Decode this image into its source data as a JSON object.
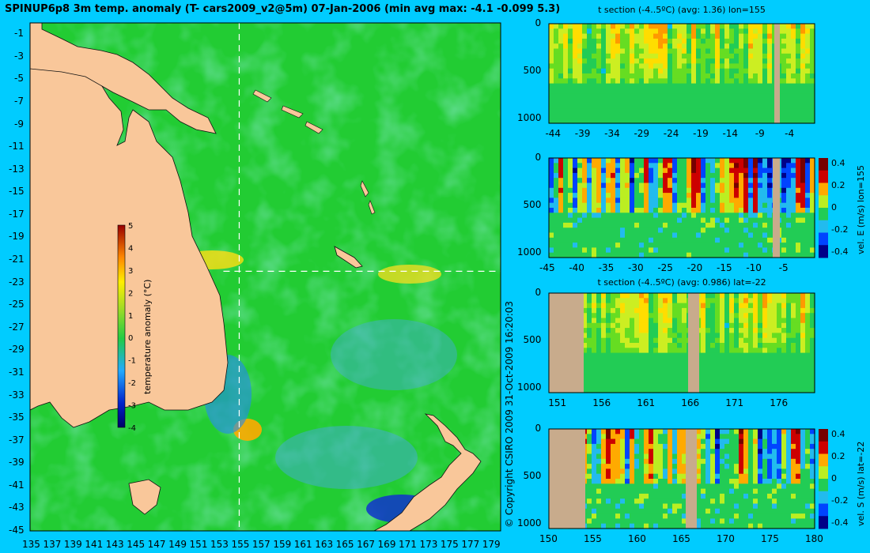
{
  "header": {
    "title": "SPINUP6p8 3m temp. anomaly (T- cars2009_v2@5m) 07-Jan-2006 (min avg max: -4.1 -0.099 5.3)"
  },
  "copyright": "© Copyright CSIRO 2009   31-Oct-2009 16:20:03",
  "colors": {
    "background": "#00ccff",
    "land_map": "#f9c79a",
    "land_section": "#c8ab8c",
    "ocean_base": "#22cc33"
  },
  "chart_data": [
    {
      "type": "heatmap",
      "name": "map",
      "title": "SPINUP6p8 3m temp. anomaly (T- cars2009_v2@5m) 07-Jan-2006 (min avg max: -4.1 -0.099 5.3)",
      "x_ticks": [
        "135",
        "137",
        "139",
        "141",
        "143",
        "145",
        "147",
        "149",
        "151",
        "153",
        "155",
        "157",
        "159",
        "161",
        "163",
        "165",
        "167",
        "169",
        "171",
        "173",
        "175",
        "177",
        "179"
      ],
      "y_ticks": [
        "-1",
        "-3",
        "-5",
        "-7",
        "-9",
        "-11",
        "-13",
        "-15",
        "-17",
        "-19",
        "-21",
        "-23",
        "-25",
        "-27",
        "-29",
        "-31",
        "-33",
        "-35",
        "-37",
        "-39",
        "-41",
        "-43",
        "-45"
      ],
      "xlim": [
        135,
        180
      ],
      "ylim": [
        -45,
        0
      ],
      "crosshair": {
        "lon": 155,
        "lat": -22
      },
      "colorbar": {
        "label": "temperature anomaly (°C)",
        "ticks": [
          "5",
          "4",
          "3",
          "2",
          "1",
          "0",
          "-1",
          "-2",
          "-3",
          "-4"
        ],
        "range": [
          -4,
          5
        ]
      },
      "stats": {
        "min": -4.1,
        "avg": -0.099,
        "max": 5.3
      }
    },
    {
      "type": "heatmap",
      "name": "t-section-lon",
      "title": "t section (-4..5ºC) (avg: 1.36) lon=155",
      "x_ticks": [
        "-44",
        "-39",
        "-34",
        "-29",
        "-24",
        "-19",
        "-14",
        "-9",
        "-4"
      ],
      "y_ticks": [
        "0",
        "500",
        "1000"
      ],
      "xlim": [
        -45,
        0
      ],
      "ylim": [
        1050,
        0
      ]
    },
    {
      "type": "heatmap",
      "name": "vel-e-section",
      "x_ticks": [
        "-45",
        "-40",
        "-35",
        "-30",
        "-25",
        "-20",
        "-15",
        "-10",
        "-5"
      ],
      "y_ticks": [
        "0",
        "500",
        "1000"
      ],
      "xlim": [
        -45,
        0
      ],
      "ylim": [
        1050,
        0
      ],
      "colorbar": {
        "label": "vel. E (m/s) lon=155",
        "ticks": [
          "0.4",
          "0.2",
          "0",
          "-0.2",
          "-0.4"
        ],
        "range": [
          -0.45,
          0.45
        ]
      }
    },
    {
      "type": "heatmap",
      "name": "t-section-lat",
      "title": "t section (-4..5ºC) (avg: 0.986) lat=-22",
      "x_ticks": [
        "151",
        "156",
        "161",
        "166",
        "171",
        "176"
      ],
      "y_ticks": [
        "0",
        "500",
        "1000"
      ],
      "xlim": [
        150,
        180
      ],
      "ylim": [
        1050,
        0
      ]
    },
    {
      "type": "heatmap",
      "name": "vel-s-section",
      "x_ticks": [
        "150",
        "155",
        "160",
        "165",
        "170",
        "175",
        "180"
      ],
      "y_ticks": [
        "0",
        "500",
        "1000"
      ],
      "xlim": [
        150,
        180
      ],
      "ylim": [
        1050,
        0
      ],
      "colorbar": {
        "label": "vel. S (m/s) lat=-22",
        "ticks": [
          "0.4",
          "0.2",
          "0",
          "-0.2",
          "-0.4"
        ],
        "range": [
          -0.45,
          0.45
        ]
      }
    }
  ]
}
